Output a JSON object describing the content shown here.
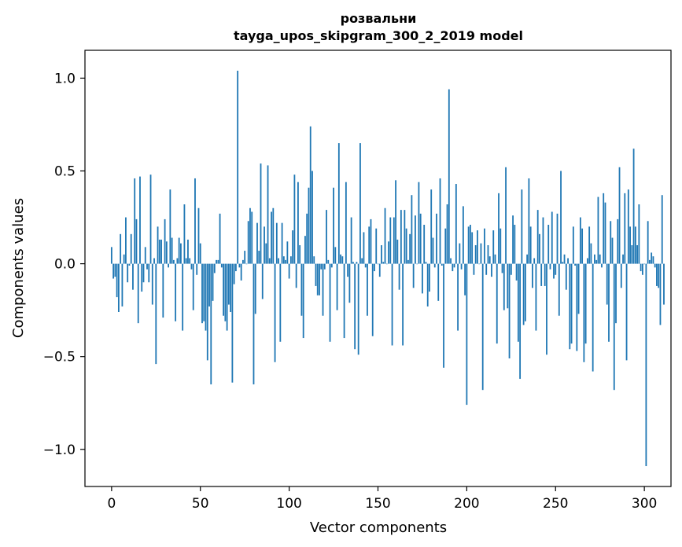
{
  "chart_data": {
    "type": "bar",
    "title": "розвальни",
    "subtitle": "tayga_upos_skipgram_300_2_2019 model",
    "xlabel": "Vector components",
    "ylabel": "Components values",
    "xlim": [
      -15,
      315
    ],
    "ylim": [
      -1.2,
      1.15
    ],
    "xticks": [
      0,
      50,
      100,
      150,
      200,
      250,
      300
    ],
    "yticks": [
      -1.0,
      -0.5,
      0.0,
      0.5,
      1.0
    ],
    "xtick_labels": [
      "0",
      "50",
      "100",
      "150",
      "200",
      "250",
      "300"
    ],
    "ytick_labels": [
      "−1.0",
      "−0.5",
      "0.0",
      "0.5",
      "1.0"
    ],
    "bar_color": "#1f77b4",
    "grid": false,
    "series": [
      {
        "values": [
          0.09,
          -0.08,
          -0.07,
          -0.18,
          -0.26,
          0.16,
          -0.23,
          0.05,
          0.25,
          -0.1,
          -0.01,
          0.16,
          -0.14,
          0.46,
          0.24,
          -0.32,
          0.47,
          -0.15,
          -0.1,
          0.09,
          -0.03,
          -0.1,
          0.48,
          -0.22,
          0.03,
          -0.54,
          0.2,
          0.13,
          0.13,
          -0.29,
          0.24,
          0.12,
          -0.02,
          0.4,
          0.14,
          0.02,
          -0.31,
          0.03,
          0.14,
          0.11,
          -0.36,
          0.32,
          0.03,
          0.13,
          0.03,
          -0.03,
          -0.25,
          0.46,
          -0.06,
          0.3,
          0.11,
          -0.32,
          -0.31,
          -0.36,
          -0.52,
          -0.23,
          -0.65,
          -0.2,
          -0.05,
          0.02,
          0.02,
          0.27,
          -0.02,
          -0.28,
          -0.31,
          -0.36,
          -0.22,
          -0.26,
          -0.64,
          -0.11,
          -0.04,
          1.04,
          -0.02,
          -0.09,
          0.02,
          0.07,
          0.0,
          0.23,
          0.3,
          0.28,
          -0.65,
          -0.27,
          0.22,
          0.07,
          0.54,
          -0.19,
          0.2,
          0.11,
          0.53,
          0.03,
          0.28,
          0.3,
          -0.53,
          0.22,
          0.03,
          -0.42,
          0.22,
          0.04,
          0.02,
          0.12,
          -0.08,
          0.04,
          0.18,
          0.48,
          -0.13,
          0.44,
          0.1,
          -0.28,
          -0.4,
          0.15,
          0.27,
          0.41,
          0.74,
          0.5,
          0.04,
          -0.12,
          -0.17,
          -0.17,
          -0.03,
          -0.28,
          -0.03,
          0.29,
          0.02,
          -0.42,
          -0.02,
          0.41,
          0.09,
          -0.25,
          0.65,
          0.05,
          0.04,
          -0.4,
          0.44,
          -0.07,
          -0.21,
          0.25,
          0.01,
          -0.46,
          0.01,
          -0.49,
          0.65,
          0.03,
          0.17,
          -0.02,
          -0.28,
          0.2,
          0.24,
          -0.39,
          -0.04,
          0.19,
          0.0,
          -0.07,
          0.1,
          0.01,
          0.3,
          0.0,
          0.12,
          0.25,
          -0.44,
          0.25,
          0.45,
          0.13,
          -0.14,
          0.29,
          -0.44,
          0.29,
          0.19,
          0.02,
          0.16,
          0.37,
          -0.13,
          0.26,
          0.0,
          0.44,
          0.27,
          -0.16,
          0.21,
          0.01,
          -0.23,
          -0.15,
          0.4,
          0.14,
          -0.02,
          0.27,
          -0.2,
          0.46,
          -0.01,
          -0.56,
          0.19,
          0.32,
          0.94,
          0.03,
          -0.04,
          -0.02,
          0.43,
          -0.36,
          0.11,
          -0.03,
          0.31,
          -0.17,
          -0.76,
          0.2,
          0.21,
          0.17,
          -0.06,
          0.1,
          0.18,
          0.0,
          0.11,
          -0.68,
          0.19,
          -0.06,
          0.1,
          0.04,
          -0.07,
          0.18,
          0.05,
          -0.43,
          0.38,
          0.19,
          -0.05,
          -0.25,
          0.52,
          -0.24,
          -0.51,
          -0.06,
          0.26,
          0.21,
          -0.09,
          -0.42,
          -0.62,
          0.4,
          -0.33,
          -0.31,
          0.05,
          0.46,
          0.2,
          -0.13,
          0.03,
          -0.36,
          0.29,
          0.16,
          -0.12,
          0.25,
          -0.12,
          -0.49,
          0.21,
          -0.03,
          0.28,
          -0.08,
          -0.06,
          0.27,
          -0.28,
          0.5,
          0.01,
          0.05,
          -0.14,
          0.03,
          -0.46,
          -0.43,
          0.2,
          -0.01,
          -0.47,
          -0.27,
          0.25,
          0.19,
          -0.53,
          -0.43,
          0.03,
          0.2,
          0.11,
          -0.58,
          0.05,
          0.02,
          0.36,
          0.05,
          -0.02,
          0.38,
          0.33,
          -0.22,
          -0.42,
          0.23,
          0.14,
          -0.68,
          -0.32,
          0.24,
          0.52,
          -0.13,
          0.05,
          0.38,
          -0.52,
          0.4,
          0.2,
          0.1,
          0.62,
          0.2,
          0.1,
          0.32,
          -0.04,
          -0.06,
          0.0,
          -1.09,
          0.23,
          0.02,
          0.06,
          0.04,
          -0.02,
          -0.12,
          -0.13,
          -0.33,
          0.37,
          -0.22
        ]
      }
    ]
  }
}
